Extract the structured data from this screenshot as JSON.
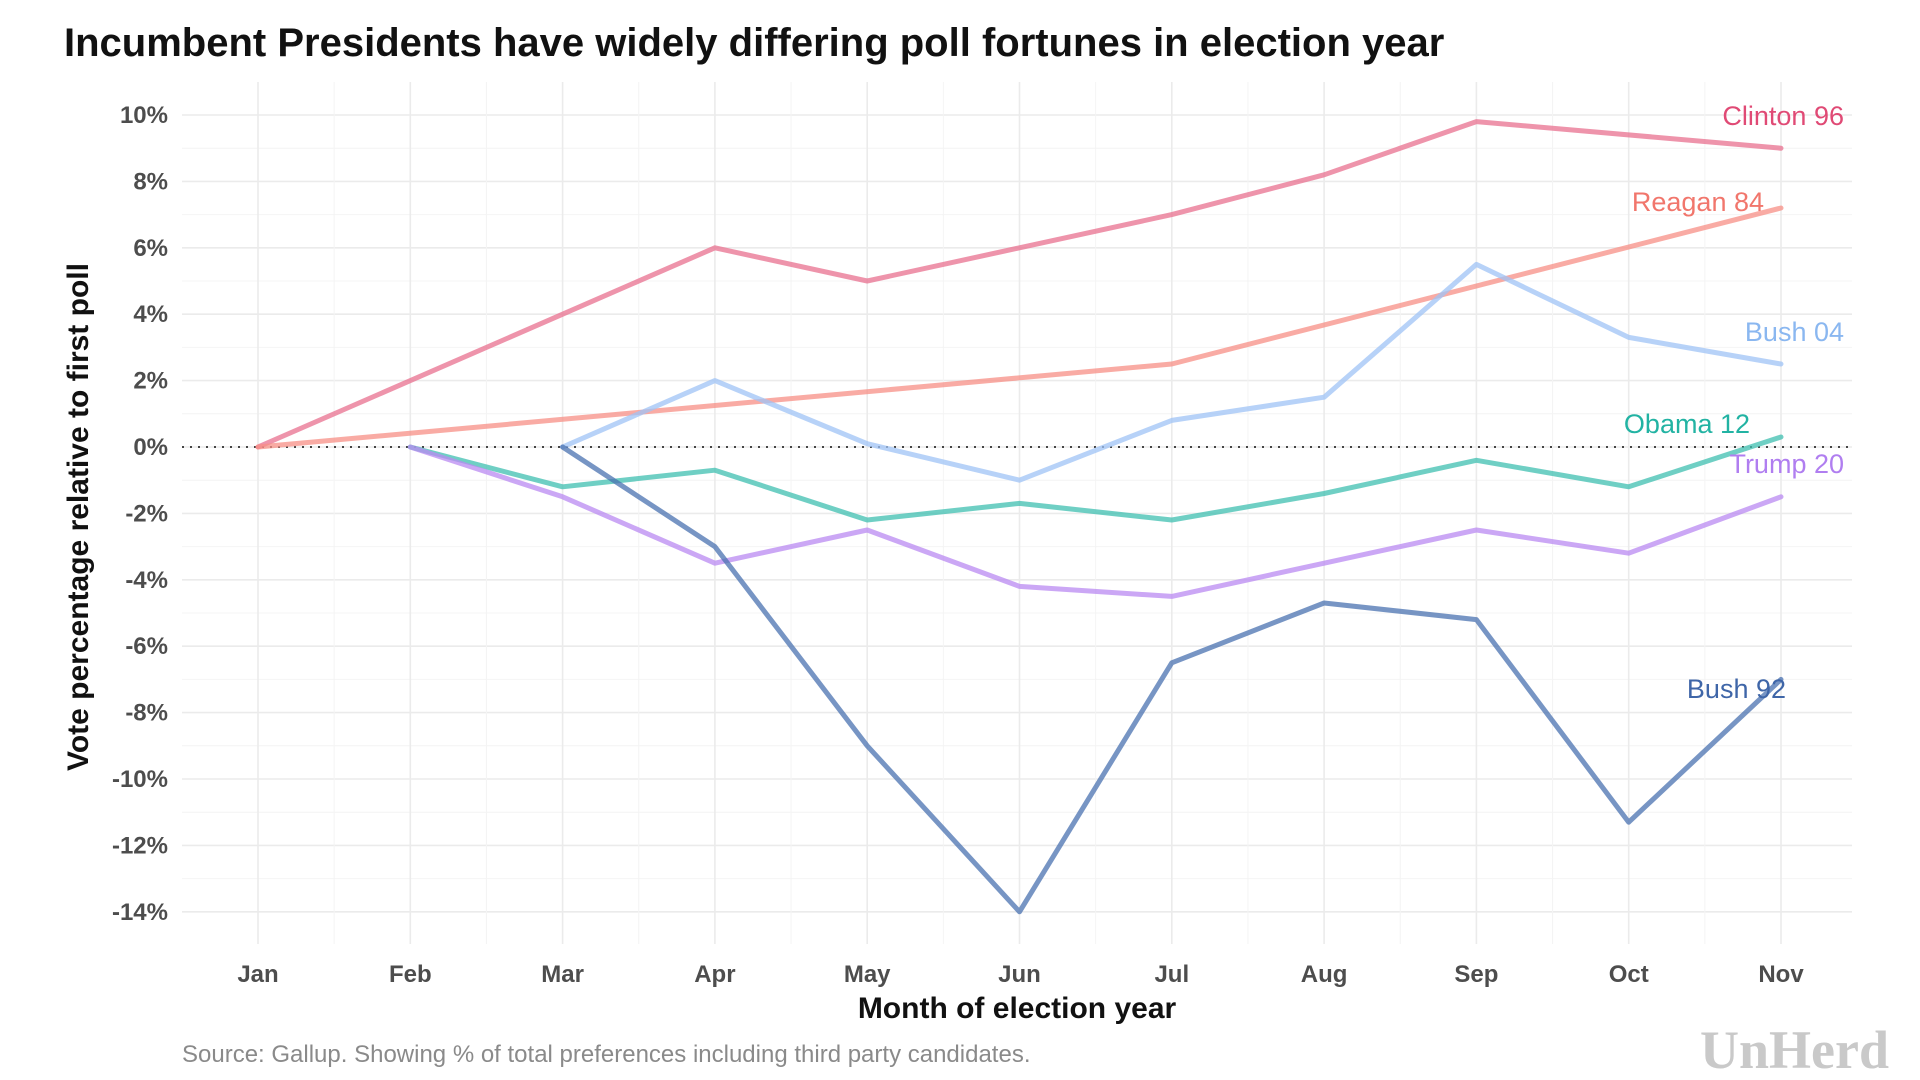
{
  "title": "Incumbent Presidents have widely differing poll fortunes in election year",
  "source": "Source: Gallup. Showing % of total preferences including third party candidates.",
  "brand": "UnHerd",
  "chart_data": {
    "type": "line",
    "title": "Incumbent Presidents have widely differing poll fortunes in election year",
    "xlabel": "Month of election year",
    "ylabel": "Vote percentage relative to first poll",
    "categories": [
      "Jan",
      "Feb",
      "Mar",
      "Apr",
      "May",
      "Jun",
      "Jul",
      "Aug",
      "Sep",
      "Oct",
      "Nov"
    ],
    "y_ticks": [
      10,
      8,
      6,
      4,
      2,
      0,
      -2,
      -4,
      -6,
      -8,
      -10,
      -12,
      -14
    ],
    "y_tick_labels": [
      "10%",
      "8%",
      "6%",
      "4%",
      "2%",
      "0%",
      "-2%",
      "-4%",
      "-6%",
      "-8%",
      "-10%",
      "-12%",
      "-14%"
    ],
    "ylim": [
      -15,
      10.5
    ],
    "grid": true,
    "legend": "direct labels at line ends",
    "series": [
      {
        "name": "Clinton 96",
        "color": "#e8708f",
        "label_color": "#e04a75",
        "x": [
          "Jan",
          "Mar",
          "Apr",
          "May",
          "Jun",
          "Jul",
          "Aug",
          "Sep",
          "Nov"
        ],
        "values": [
          0,
          4,
          6,
          5,
          6,
          7,
          8.2,
          9.8,
          9
        ]
      },
      {
        "name": "Reagan 84",
        "color": "#f78f86",
        "label_color": "#f1766c",
        "x": [
          "Jan",
          "Jul",
          "Nov"
        ],
        "values": [
          0,
          2.5,
          7.2
        ]
      },
      {
        "name": "Bush 04",
        "color": "#9fc3f5",
        "label_color": "#8ab7f0",
        "x": [
          "Mar",
          "Apr",
          "May",
          "Jun",
          "Jul",
          "Aug",
          "Sep",
          "Oct",
          "Nov"
        ],
        "values": [
          0,
          2,
          0.1,
          -1,
          0.8,
          1.5,
          5.5,
          3.3,
          2.5
        ]
      },
      {
        "name": "Obama 12",
        "color": "#3fbfb0",
        "label_color": "#22b3a3",
        "x": [
          "Feb",
          "Mar",
          "Apr",
          "May",
          "Jun",
          "Jul",
          "Aug",
          "Sep",
          "Oct",
          "Nov"
        ],
        "values": [
          0,
          -1.2,
          -0.7,
          -2.2,
          -1.7,
          -2.2,
          -1.4,
          -0.4,
          -1.2,
          0.3
        ]
      },
      {
        "name": "Trump 20",
        "color": "#b98af2",
        "label_color": "#b07ef0",
        "x": [
          "Feb",
          "Mar",
          "Apr",
          "May",
          "Jun",
          "Jul",
          "Aug",
          "Sep",
          "Oct",
          "Nov"
        ],
        "values": [
          0,
          -1.5,
          -3.5,
          -2.5,
          -4.2,
          -4.5,
          -3.5,
          -2.5,
          -3.2,
          -1.5
        ]
      },
      {
        "name": "Bush 92",
        "color": "#4a72b0",
        "label_color": "#3f66a8",
        "x": [
          "Mar",
          "Apr",
          "May",
          "Jun",
          "Jul",
          "Aug",
          "Sep",
          "Oct",
          "Nov"
        ],
        "values": [
          0,
          -3,
          -9,
          -14,
          -6.5,
          -4.7,
          -5.2,
          -11.3,
          -7
        ]
      }
    ]
  }
}
